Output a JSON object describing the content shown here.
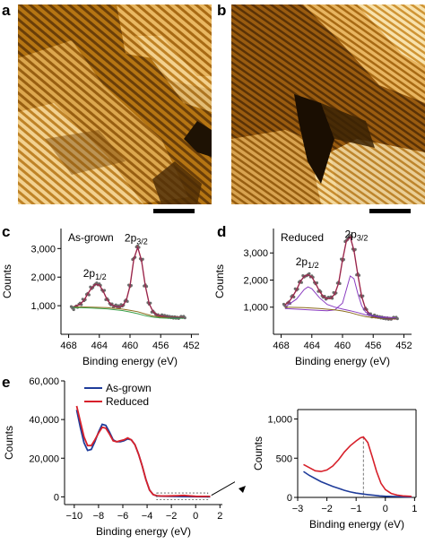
{
  "panels": {
    "a": "a",
    "b": "b",
    "c": "c",
    "d": "d",
    "e": "e"
  },
  "colors": {
    "stm_dark": "#3a2205",
    "stm_mid": "#a86a10",
    "stm_light": "#f5d89a",
    "as_grown": "#1f3c9a",
    "reduced": "#d7202a",
    "data_points": "#6a6a6a",
    "fit_green": "#3aa04a",
    "fit_purple": "#8a3cc0",
    "background_brown": "#8a6a1a"
  },
  "chart_data": [
    {
      "id": "c",
      "type": "line",
      "annotation": "As-grown",
      "xlabel": "Binding energy (eV)",
      "ylabel": "Counts",
      "xlim": [
        469,
        451
      ],
      "ylim": [
        0,
        3700
      ],
      "xticks": [
        468,
        464,
        460,
        456,
        452
      ],
      "xtick_labels": [
        "468",
        "464",
        "460",
        "456",
        "452"
      ],
      "yticks": [
        1000,
        2000,
        3000
      ],
      "ytick_labels": [
        "1,000",
        "2,000",
        "3,000"
      ],
      "peak_labels": [
        {
          "base": "2p",
          "sub": "1/2",
          "x": 464.6,
          "y": 2000
        },
        {
          "base": "2p",
          "sub": "3/2",
          "x": 459.2,
          "y": 3250
        }
      ],
      "series": [
        {
          "role": "data",
          "x": [
            467.5,
            467,
            466.5,
            466,
            465.5,
            465,
            464.5,
            464,
            463.5,
            463,
            462.5,
            462,
            461.5,
            461,
            460.5,
            460,
            459.5,
            459,
            458.5,
            458,
            457.5,
            457,
            456.5,
            456,
            455.5,
            455,
            454.5,
            454,
            453.5,
            453
          ],
          "y": [
            960,
            1000,
            1060,
            1200,
            1420,
            1640,
            1760,
            1730,
            1520,
            1230,
            1060,
            990,
            960,
            1000,
            1180,
            1700,
            2650,
            3050,
            2600,
            1700,
            1080,
            800,
            690,
            650,
            630,
            610,
            600,
            595,
            590,
            590
          ]
        },
        {
          "role": "envelope",
          "x": [
            467.5,
            467,
            466.5,
            466,
            465.5,
            465,
            464.5,
            464,
            463.5,
            463,
            462.5,
            462,
            461.5,
            461,
            460.5,
            460,
            459.5,
            459,
            458.5,
            458,
            457.5,
            457,
            456.5,
            456,
            455.5,
            455,
            454.5,
            454,
            453.5,
            453
          ],
          "y": [
            950,
            990,
            1050,
            1190,
            1410,
            1630,
            1750,
            1720,
            1510,
            1220,
            1050,
            980,
            950,
            990,
            1170,
            1690,
            2640,
            3040,
            2590,
            1690,
            1070,
            790,
            680,
            640,
            620,
            600,
            590,
            585,
            580,
            580
          ]
        },
        {
          "role": "background",
          "x": [
            467.5,
            465,
            463,
            461,
            460,
            459,
            458,
            457,
            456,
            455,
            453
          ],
          "y": [
            960,
            950,
            930,
            880,
            840,
            790,
            710,
            640,
            600,
            585,
            575
          ]
        },
        {
          "role": "background2",
          "x": [
            467.5,
            465,
            463,
            461,
            460,
            459,
            458,
            457,
            456,
            455,
            453
          ],
          "y": [
            940,
            920,
            890,
            830,
            780,
            720,
            650,
            600,
            570,
            560,
            560
          ]
        }
      ]
    },
    {
      "id": "d",
      "type": "line",
      "annotation": "Reduced",
      "xlabel": "Binding energy (eV)",
      "ylabel": "Counts",
      "xlim": [
        469,
        451
      ],
      "ylim": [
        0,
        3900
      ],
      "xticks": [
        468,
        464,
        460,
        456,
        452
      ],
      "xtick_labels": [
        "468",
        "464",
        "460",
        "456",
        "452"
      ],
      "yticks": [
        1000,
        2000,
        3000
      ],
      "ytick_labels": [
        "1,000",
        "2,000",
        "3,000"
      ],
      "peak_labels": [
        {
          "base": "2p",
          "sub": "1/2",
          "x": 464.6,
          "y": 2550
        },
        {
          "base": "2p",
          "sub": "3/2",
          "x": 458.2,
          "y": 3550
        }
      ],
      "series": [
        {
          "role": "data",
          "x": [
            467.5,
            467,
            466.5,
            466,
            465.5,
            465,
            464.5,
            464,
            463.5,
            463,
            462.5,
            462,
            461.5,
            461,
            460.5,
            460,
            459.5,
            459,
            458.5,
            458,
            457.5,
            457,
            456.5,
            456,
            455.5,
            455,
            454.5,
            454,
            453.5,
            453
          ],
          "y": [
            1100,
            1200,
            1400,
            1650,
            1950,
            2150,
            2200,
            2120,
            1880,
            1600,
            1400,
            1330,
            1340,
            1500,
            1900,
            2750,
            3450,
            3600,
            3100,
            2200,
            1400,
            950,
            760,
            680,
            640,
            620,
            600,
            590,
            590,
            590
          ]
        },
        {
          "role": "envelope",
          "x": [
            467.5,
            467,
            466.5,
            466,
            465.5,
            465,
            464.5,
            464,
            463.5,
            463,
            462.5,
            462,
            461.5,
            461,
            460.5,
            460,
            459.5,
            459,
            458.5,
            458,
            457.5,
            457,
            456.5,
            456,
            455.5,
            455,
            454.5,
            454,
            453.5,
            453
          ],
          "y": [
            1090,
            1190,
            1390,
            1640,
            1940,
            2140,
            2190,
            2110,
            1870,
            1590,
            1390,
            1320,
            1330,
            1490,
            1890,
            2740,
            3440,
            3590,
            3090,
            2190,
            1390,
            940,
            750,
            670,
            630,
            610,
            590,
            580,
            580,
            580
          ]
        },
        {
          "role": "component",
          "x": [
            467.5,
            466,
            465,
            464.5,
            464,
            463,
            462,
            461,
            460,
            459,
            458,
            457,
            455,
            453
          ],
          "y": [
            1000,
            1300,
            1650,
            1750,
            1680,
            1350,
            1100,
            1000,
            930,
            870,
            800,
            720,
            640,
            600
          ]
        },
        {
          "role": "component2",
          "x": [
            467.5,
            463,
            462,
            461,
            460,
            459.5,
            459,
            458.5,
            458,
            457.5,
            457,
            456,
            455,
            453
          ],
          "y": [
            950,
            880,
            870,
            900,
            1150,
            1650,
            2150,
            2050,
            1500,
            1050,
            820,
            680,
            620,
            590
          ]
        },
        {
          "role": "background",
          "x": [
            467.5,
            465,
            463,
            461,
            460,
            459,
            458,
            457,
            456,
            455,
            453
          ],
          "y": [
            1000,
            980,
            950,
            900,
            860,
            800,
            720,
            650,
            610,
            590,
            580
          ]
        }
      ]
    },
    {
      "id": "e-main",
      "type": "line",
      "xlabel": "Binding energy (eV)",
      "ylabel": "Counts",
      "xlim": [
        -10.8,
        2.2
      ],
      "ylim": [
        -4000,
        60000
      ],
      "xticks": [
        -10,
        -8,
        -6,
        -4,
        -2,
        0,
        2
      ],
      "xtick_labels": [
        "−10",
        "−8",
        "−6",
        "−4",
        "−2",
        "0",
        "2"
      ],
      "yticks": [
        0,
        20000,
        40000,
        60000
      ],
      "ytick_labels": [
        "0",
        "20,000",
        "40,000",
        "60,000"
      ],
      "legend": [
        {
          "name": "As-grown",
          "color": "#1f3c9a"
        },
        {
          "name": "Reduced",
          "color": "#d7202a"
        }
      ],
      "series": [
        {
          "name": "As-grown",
          "color": "#1f3c9a",
          "x": [
            -9.8,
            -9.5,
            -9.2,
            -8.9,
            -8.6,
            -8.3,
            -8.0,
            -7.7,
            -7.4,
            -7.1,
            -6.8,
            -6.5,
            -6.2,
            -5.9,
            -5.6,
            -5.3,
            -5.0,
            -4.7,
            -4.4,
            -4.1,
            -3.8,
            -3.5,
            -3.2,
            -2.9,
            -2.5,
            -2,
            -1,
            0,
            1.2
          ],
          "y": [
            45000,
            36000,
            28000,
            24000,
            24500,
            28500,
            33500,
            37500,
            37000,
            33500,
            29500,
            28500,
            28500,
            29000,
            30000,
            29500,
            27000,
            22000,
            16000,
            9000,
            3500,
            1200,
            500,
            350,
            300,
            250,
            150,
            100,
            50
          ]
        },
        {
          "name": "Reduced",
          "color": "#d7202a",
          "x": [
            -9.8,
            -9.5,
            -9.2,
            -8.9,
            -8.6,
            -8.3,
            -8.0,
            -7.7,
            -7.4,
            -7.1,
            -6.8,
            -6.5,
            -6.2,
            -5.9,
            -5.6,
            -5.3,
            -5.0,
            -4.7,
            -4.4,
            -4.1,
            -3.8,
            -3.5,
            -3.2,
            -2.9,
            -2.5,
            -2,
            -1.5,
            -1,
            -0.5,
            0,
            1.2
          ],
          "y": [
            47000,
            39000,
            31000,
            26500,
            26500,
            29500,
            33000,
            36000,
            35500,
            32500,
            29000,
            28500,
            29000,
            29500,
            30500,
            29500,
            27000,
            22000,
            16000,
            9000,
            3500,
            1200,
            600,
            450,
            420,
            480,
            600,
            750,
            500,
            250,
            200
          ]
        }
      ],
      "inset_box": {
        "x0": -3.2,
        "x1": 1.0,
        "y0": -1500,
        "y1": 2000
      }
    },
    {
      "id": "e-inset",
      "type": "line",
      "xlabel": "Binding energy (eV)",
      "ylabel": "Counts",
      "xlim": [
        -3.0,
        1.05
      ],
      "ylim": [
        0,
        1120
      ],
      "xticks": [
        -3,
        -2,
        -1,
        0,
        1
      ],
      "xtick_labels": [
        "−3",
        "−2",
        "−1",
        "0",
        "1"
      ],
      "yticks": [
        0,
        500,
        1000
      ],
      "ytick_labels": [
        "0",
        "500",
        "1,000"
      ],
      "dashed_marker_x": -0.75,
      "series": [
        {
          "name": "As-grown",
          "color": "#1f3c9a",
          "x": [
            -2.8,
            -2.6,
            -2.4,
            -2.2,
            -2.0,
            -1.8,
            -1.6,
            -1.4,
            -1.2,
            -1.0,
            -0.8,
            -0.6,
            -0.4,
            -0.2,
            0,
            0.2,
            0.4,
            0.6,
            0.8,
            0.9
          ],
          "y": [
            330,
            280,
            240,
            200,
            170,
            140,
            115,
            90,
            70,
            55,
            45,
            35,
            28,
            20,
            15,
            12,
            10,
            8,
            6,
            5
          ]
        },
        {
          "name": "Reduced",
          "color": "#d7202a",
          "x": [
            -2.8,
            -2.6,
            -2.4,
            -2.2,
            -2.0,
            -1.8,
            -1.6,
            -1.4,
            -1.2,
            -1.0,
            -0.85,
            -0.75,
            -0.6,
            -0.45,
            -0.3,
            -0.15,
            0,
            0.2,
            0.4,
            0.6,
            0.8,
            0.9
          ],
          "y": [
            420,
            380,
            340,
            330,
            350,
            400,
            480,
            580,
            660,
            720,
            760,
            770,
            700,
            520,
            330,
            180,
            100,
            50,
            30,
            20,
            15,
            12
          ]
        }
      ]
    }
  ]
}
